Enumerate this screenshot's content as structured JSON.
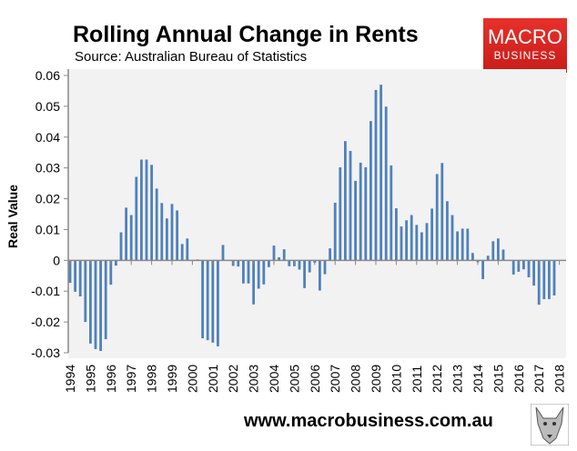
{
  "header": {
    "title": "Rolling Annual Change in Rents",
    "source": "Source: Australian Bureau of Statistics"
  },
  "logo": {
    "line1": "MACRO",
    "line2": "BUSINESS",
    "color": "#e0251f"
  },
  "footer": {
    "url": "www.macrobusiness.com.au",
    "icon": "wolf-icon"
  },
  "chart_data": {
    "type": "bar",
    "title": "Rolling Annual Change in Rents",
    "ylabel": "Real Value",
    "xlabel": "",
    "ylim": [
      -0.03,
      0.06
    ],
    "yticks": [
      "0.06",
      "0.05",
      "0.04",
      "0.03",
      "0.02",
      "0.01",
      "0",
      "-0.01",
      "-0.02",
      "-0.03"
    ],
    "xticks": [
      "1994",
      "1995",
      "1996",
      "1997",
      "1998",
      "1999",
      "2000",
      "2001",
      "2002",
      "2003",
      "2004",
      "2005",
      "2006",
      "2007",
      "2008",
      "2009",
      "2010",
      "2011",
      "2012",
      "2013",
      "2014",
      "2015",
      "2016",
      "2017",
      "2018"
    ],
    "grid": false,
    "bar_color": "#4f81bd",
    "background": "#f2f2f2",
    "values": [
      -0.0073,
      -0.0102,
      -0.0117,
      -0.02,
      -0.027,
      -0.0288,
      -0.0294,
      -0.0256,
      -0.0079,
      -0.0017,
      0.0091,
      0.0171,
      0.0147,
      0.0271,
      0.0327,
      0.0327,
      0.031,
      0.0233,
      0.0186,
      0.0136,
      0.0183,
      0.0162,
      0.0053,
      0.0071,
      0.0,
      0.0003,
      -0.0253,
      -0.0259,
      -0.0267,
      -0.0279,
      0.005,
      0.0,
      -0.0018,
      -0.002,
      -0.0075,
      -0.0075,
      -0.0143,
      -0.0092,
      -0.0078,
      -0.0022,
      0.0048,
      0.001,
      0.0036,
      -0.0019,
      -0.0019,
      -0.003,
      -0.009,
      -0.0039,
      -0.0008,
      -0.0098,
      -0.0045,
      0.0039,
      0.0187,
      0.0302,
      0.0387,
      0.0355,
      0.0258,
      0.0317,
      0.0302,
      0.0452,
      0.0553,
      0.057,
      0.0499,
      0.0308,
      0.0169,
      0.011,
      0.013,
      0.0147,
      0.0115,
      0.0091,
      0.0121,
      0.0168,
      0.028,
      0.0316,
      0.0192,
      0.0147,
      0.0094,
      0.0103,
      0.0103,
      0.0024,
      -0.0006,
      -0.0061,
      0.0015,
      0.0062,
      0.0071,
      0.0035,
      0.0,
      -0.0046,
      -0.0037,
      -0.0029,
      -0.0055,
      -0.0082,
      -0.0144,
      -0.0126,
      -0.0126,
      -0.0114
    ]
  }
}
